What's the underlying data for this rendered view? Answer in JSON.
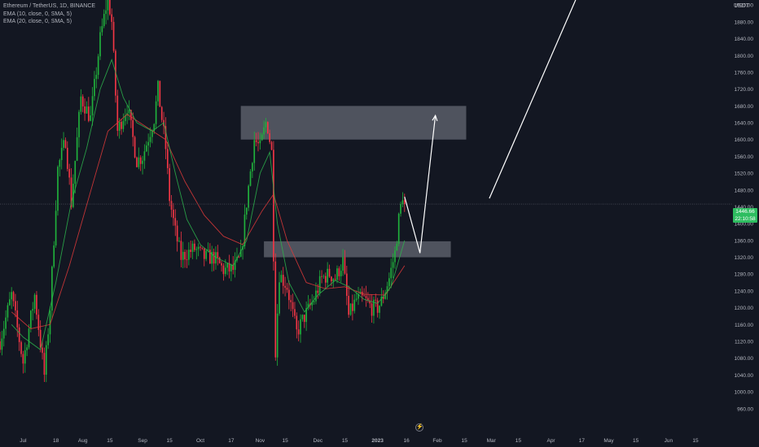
{
  "legend": {
    "symbol": "Ethereum / TetherUS, 1D, BINANCE",
    "ema10": "EMA (10, close, 0, SMA, 5)",
    "ema20": "EMA (20, close, 0, SMA, 5)"
  },
  "price_axis": {
    "unit": "USDT"
  },
  "last_price": {
    "value": "1446.66",
    "countdown": "22:10:58"
  },
  "flash_glyph": "⚡",
  "colors": {
    "background": "#131722",
    "up": "#26a69a",
    "up_candle": "#20b23c",
    "down_candle": "#f23645",
    "ema10": "#2db44c",
    "ema20": "#e03a3a",
    "zone": "#d1d4dc",
    "arrow": "#ffffff",
    "badge": "#2ebd60",
    "axis_text": "#b2b5be"
  },
  "chart_data": {
    "type": "candlestick",
    "y_ticks": [
      960,
      1000,
      1040,
      1080,
      1120,
      1160,
      1200,
      1240,
      1280,
      1320,
      1360,
      1400,
      1440,
      1480,
      1520,
      1560,
      1600,
      1640,
      1680,
      1720,
      1760,
      1800,
      1840,
      1880,
      1920
    ],
    "y_tick_labels": [
      "960.00",
      "1000.00",
      "1040.00",
      "1080.00",
      "1120.00",
      "1160.00",
      "1200.00",
      "1240.00",
      "1280.00",
      "1320.00",
      "1360.00",
      "1400.00",
      "1440.00",
      "1480.00",
      "1520.00",
      "1560.00",
      "1600.00",
      "1640.00",
      "1680.00",
      "1720.00",
      "1760.00",
      "1800.00",
      "1840.00",
      "1880.00",
      "1920.00"
    ],
    "ylim": [
      946,
      1932
    ],
    "x_ticks": [
      "2022-07-01",
      "2022-07-18",
      "2022-08-01",
      "2022-08-15",
      "2022-09-01",
      "2022-09-15",
      "2022-10-01",
      "2022-10-17",
      "2022-11-01",
      "2022-11-14",
      "2022-12-01",
      "2022-12-15",
      "2023-01-01",
      "2023-01-16",
      "2023-02-01",
      "2023-02-15",
      "2023-03-01",
      "2023-03-15",
      "2023-04-01",
      "2023-04-17",
      "2023-05-01",
      "2023-05-15",
      "2023-06-01",
      "2023-06-15"
    ],
    "x_tick_labels": [
      "Jul",
      "18",
      "Aug",
      "15",
      "Sep",
      "15",
      "Oct",
      "17",
      "Nov",
      "15",
      "Dec",
      "15",
      "2023",
      "16",
      "Feb",
      "15",
      "Mar",
      "15",
      "Apr",
      "17",
      "May",
      "15",
      "Jun",
      "15"
    ],
    "x_tick_bold": [
      false,
      false,
      false,
      false,
      false,
      false,
      false,
      false,
      false,
      false,
      false,
      false,
      true,
      false,
      false,
      false,
      false,
      false,
      false,
      false,
      false,
      false,
      false,
      false
    ],
    "xlim": [
      "2022-06-19",
      "2023-06-26"
    ],
    "close_points": [
      [
        "2022-06-19",
        1120
      ],
      [
        "2022-06-25",
        1230
      ],
      [
        "2022-07-01",
        1070
      ],
      [
        "2022-07-07",
        1230
      ],
      [
        "2022-07-12",
        1040
      ],
      [
        "2022-07-15",
        1200
      ],
      [
        "2022-07-19",
        1530
      ],
      [
        "2022-07-23",
        1600
      ],
      [
        "2022-07-26",
        1450
      ],
      [
        "2022-07-31",
        1700
      ],
      [
        "2022-08-05",
        1650
      ],
      [
        "2022-08-10",
        1840
      ],
      [
        "2022-08-14",
        1940
      ],
      [
        "2022-08-16",
        1880
      ],
      [
        "2022-08-19",
        1620
      ],
      [
        "2022-08-24",
        1680
      ],
      [
        "2022-08-29",
        1550
      ],
      [
        "2022-09-01",
        1560
      ],
      [
        "2022-09-07",
        1650
      ],
      [
        "2022-09-09",
        1720
      ],
      [
        "2022-09-13",
        1580
      ],
      [
        "2022-09-15",
        1460
      ],
      [
        "2022-09-18",
        1380
      ],
      [
        "2022-09-21",
        1320
      ],
      [
        "2022-09-24",
        1330
      ],
      [
        "2022-09-28",
        1340
      ],
      [
        "2022-10-03",
        1320
      ],
      [
        "2022-10-08",
        1320
      ],
      [
        "2022-10-13",
        1290
      ],
      [
        "2022-10-18",
        1290
      ],
      [
        "2022-10-22",
        1320
      ],
      [
        "2022-10-25",
        1450
      ],
      [
        "2022-10-29",
        1600
      ],
      [
        "2022-11-01",
        1580
      ],
      [
        "2022-11-04",
        1640
      ],
      [
        "2022-11-05",
        1630
      ],
      [
        "2022-11-07",
        1570
      ],
      [
        "2022-11-08",
        1330
      ],
      [
        "2022-11-09",
        1100
      ],
      [
        "2022-11-11",
        1280
      ],
      [
        "2022-11-15",
        1250
      ],
      [
        "2022-11-20",
        1140
      ],
      [
        "2022-11-23",
        1170
      ],
      [
        "2022-11-29",
        1220
      ],
      [
        "2022-12-03",
        1270
      ],
      [
        "2022-12-07",
        1280
      ],
      [
        "2022-12-10",
        1270
      ],
      [
        "2022-12-14",
        1310
      ],
      [
        "2022-12-17",
        1180
      ],
      [
        "2022-12-21",
        1220
      ],
      [
        "2022-12-25",
        1220
      ],
      [
        "2022-12-29",
        1200
      ],
      [
        "2023-01-01",
        1200
      ],
      [
        "2023-01-03",
        1215
      ],
      [
        "2023-01-07",
        1270
      ],
      [
        "2023-01-10",
        1330
      ],
      [
        "2023-01-12",
        1410
      ],
      [
        "2023-01-14",
        1470
      ],
      [
        "2023-01-15",
        1446.66
      ]
    ],
    "ema10": [
      [
        "2022-06-25",
        1160
      ],
      [
        "2022-07-01",
        1130
      ],
      [
        "2022-07-10",
        1100
      ],
      [
        "2022-07-18",
        1260
      ],
      [
        "2022-07-26",
        1450
      ],
      [
        "2022-08-03",
        1580
      ],
      [
        "2022-08-10",
        1720
      ],
      [
        "2022-08-16",
        1790
      ],
      [
        "2022-08-22",
        1700
      ],
      [
        "2022-08-29",
        1640
      ],
      [
        "2022-09-06",
        1620
      ],
      [
        "2022-09-12",
        1640
      ],
      [
        "2022-09-18",
        1520
      ],
      [
        "2022-09-24",
        1410
      ],
      [
        "2022-10-01",
        1350
      ],
      [
        "2022-10-09",
        1320
      ],
      [
        "2022-10-18",
        1300
      ],
      [
        "2022-10-25",
        1360
      ],
      [
        "2022-11-01",
        1520
      ],
      [
        "2022-11-06",
        1570
      ],
      [
        "2022-11-10",
        1400
      ],
      [
        "2022-11-16",
        1260
      ],
      [
        "2022-11-24",
        1190
      ],
      [
        "2022-12-01",
        1230
      ],
      [
        "2022-12-10",
        1265
      ],
      [
        "2022-12-17",
        1250
      ],
      [
        "2022-12-25",
        1220
      ],
      [
        "2023-01-01",
        1210
      ],
      [
        "2023-01-08",
        1250
      ],
      [
        "2023-01-15",
        1360
      ]
    ],
    "ema20": [
      [
        "2022-06-25",
        1190
      ],
      [
        "2022-07-05",
        1150
      ],
      [
        "2022-07-15",
        1160
      ],
      [
        "2022-07-25",
        1300
      ],
      [
        "2022-08-04",
        1460
      ],
      [
        "2022-08-14",
        1620
      ],
      [
        "2022-08-24",
        1660
      ],
      [
        "2022-09-03",
        1630
      ],
      [
        "2022-09-13",
        1600
      ],
      [
        "2022-09-23",
        1500
      ],
      [
        "2022-10-03",
        1420
      ],
      [
        "2022-10-13",
        1370
      ],
      [
        "2022-10-23",
        1350
      ],
      [
        "2022-11-02",
        1430
      ],
      [
        "2022-11-08",
        1470
      ],
      [
        "2022-11-15",
        1360
      ],
      [
        "2022-11-25",
        1260
      ],
      [
        "2022-12-05",
        1245
      ],
      [
        "2022-12-15",
        1250
      ],
      [
        "2022-12-25",
        1232
      ],
      [
        "2023-01-05",
        1230
      ],
      [
        "2023-01-15",
        1300
      ]
    ],
    "zones": [
      {
        "from": "2022-10-22",
        "to": "2023-02-16",
        "low": 1600,
        "high": 1680
      },
      {
        "from": "2022-11-03",
        "to": "2023-02-08",
        "low": 1320,
        "high": 1358
      }
    ],
    "arrows": [
      {
        "points": [
          [
            "2023-01-15",
            1464
          ],
          [
            "2023-01-23",
            1330
          ],
          [
            "2023-01-31",
            1657
          ]
        ],
        "head": true
      },
      {
        "points": [
          [
            "2023-02-28",
            1460
          ],
          [
            "2023-04-15",
            1945
          ]
        ],
        "head": false
      }
    ],
    "last_price": 1446.66,
    "grid": false
  }
}
